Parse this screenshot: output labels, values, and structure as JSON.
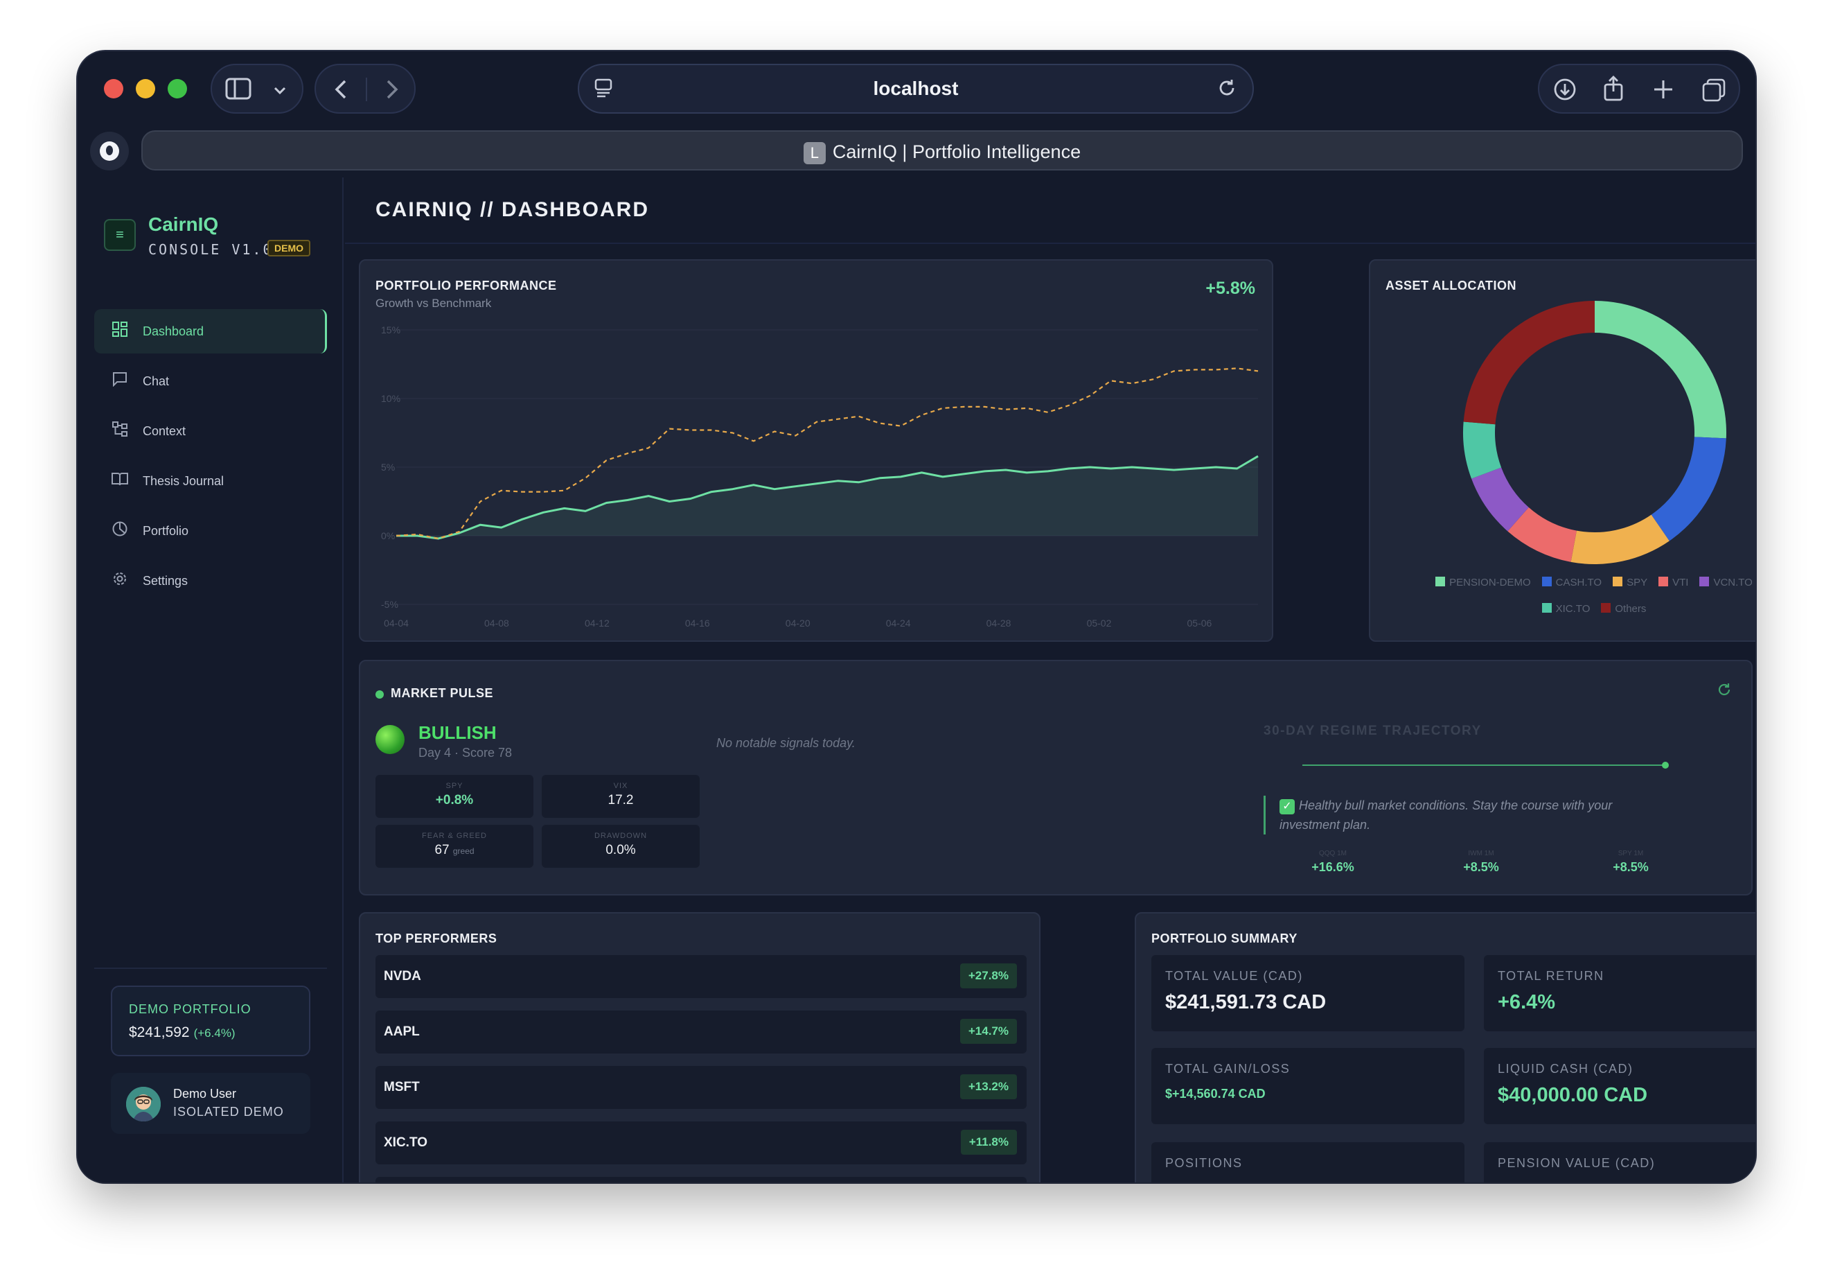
{
  "browser": {
    "url": "localhost",
    "tab_title": "CairnIQ | Portfolio Intelligence",
    "tab_favicon_letter": "L"
  },
  "sidebar": {
    "brand": "CairnIQ",
    "console": "CONSOLE V1.0",
    "demo_badge": "DEMO",
    "items": [
      {
        "label": "Dashboard",
        "icon": "grid-icon",
        "active": true
      },
      {
        "label": "Chat",
        "icon": "chat-icon"
      },
      {
        "label": "Context",
        "icon": "network-icon"
      },
      {
        "label": "Thesis Journal",
        "icon": "book-icon"
      },
      {
        "label": "Portfolio",
        "icon": "pie-icon"
      },
      {
        "label": "Settings",
        "icon": "gear-icon"
      }
    ],
    "demo_portfolio": {
      "label": "DEMO PORTFOLIO",
      "value": "$241,592",
      "pct": "(+6.4%)"
    },
    "user": {
      "name": "Demo User",
      "role": "ISOLATED DEMO"
    }
  },
  "page": {
    "title": "CAIRNIQ // DASHBOARD"
  },
  "performance": {
    "title": "PORTFOLIO PERFORMANCE",
    "subtitle": "Growth vs Benchmark",
    "pct": "+5.8%"
  },
  "chart_data": [
    {
      "type": "line",
      "title": "PORTFOLIO PERFORMANCE",
      "subtitle": "Growth vs Benchmark",
      "ylim": [
        -5,
        15
      ],
      "y_ticks": [
        "15%",
        "10%",
        "5%",
        "0%",
        "-5%"
      ],
      "x_ticks": [
        "04-04",
        "04-08",
        "04-12",
        "04-16",
        "04-20",
        "04-24",
        "04-28",
        "05-02",
        "05-06"
      ],
      "grid": true,
      "series": [
        {
          "color": "#6ee0a4",
          "style": "solid-area",
          "values": [
            0,
            0,
            -0.2,
            0.2,
            0.8,
            0.6,
            1.2,
            1.7,
            2.0,
            1.8,
            2.4,
            2.6,
            2.9,
            2.5,
            2.7,
            3.2,
            3.4,
            3.7,
            3.4,
            3.6,
            3.8,
            4.0,
            3.9,
            4.2,
            4.3,
            4.6,
            4.3,
            4.5,
            4.7,
            4.8,
            4.6,
            4.7,
            4.9,
            5.0,
            4.9,
            5.0,
            4.9,
            4.8,
            4.9,
            5.0,
            4.9,
            5.8
          ]
        },
        {
          "color": "#e8a94a",
          "style": "dashed",
          "values": [
            0,
            0.1,
            -0.2,
            0.3,
            2.5,
            3.3,
            3.2,
            3.2,
            3.3,
            4.2,
            5.5,
            6.0,
            6.4,
            7.8,
            7.7,
            7.7,
            7.5,
            6.9,
            7.6,
            7.3,
            8.3,
            8.5,
            8.7,
            8.2,
            8.0,
            8.8,
            9.3,
            9.4,
            9.4,
            9.2,
            9.3,
            9.0,
            9.5,
            10.2,
            11.3,
            11.1,
            11.4,
            12.0,
            12.1,
            12.1,
            12.2,
            12.0
          ]
        }
      ]
    },
    {
      "type": "pie",
      "title": "ASSET ALLOCATION",
      "donut": true,
      "labels": [
        "PENSION-DEMO",
        "CASH.TO",
        "SPY",
        "VTI",
        "VCN.TO",
        "XIC.TO",
        "Others"
      ],
      "values": [
        25.7,
        14.7,
        12.5,
        8.6,
        7.8,
        7.0,
        23.7
      ],
      "colors": [
        "#76dca3",
        "#3264d6",
        "#f0b14f",
        "#ec6b6b",
        "#8d59c6",
        "#4fc7a5",
        "#8a1f1f"
      ],
      "legend": "bottom"
    },
    {
      "type": "line",
      "title": "30-DAY REGIME TRAJECTORY",
      "values": [
        0,
        0,
        0,
        0,
        0,
        0,
        0,
        0,
        0,
        0
      ]
    }
  ],
  "market_pulse": {
    "title": "MARKET PULSE",
    "state": "BULLISH",
    "sub": "Day 4 · Score 78",
    "no_signals": "No notable signals today.",
    "metrics": [
      {
        "label": "SPY",
        "value": "+0.8%"
      },
      {
        "label": "VIX",
        "value": "17.2"
      },
      {
        "label": "FEAR & GREED",
        "value": "67",
        "unit": "greed"
      },
      {
        "label": "DRAWDOWN",
        "value": "0.0%"
      }
    ],
    "regime_title": "30-DAY REGIME TRAJECTORY",
    "note": "Healthy bull market conditions. Stay the course with your investment plan.",
    "indices": [
      {
        "label": "QQQ 1M",
        "value": "+16.6%"
      },
      {
        "label": "IWM 1M",
        "value": "+8.5%"
      },
      {
        "label": "SPY 1M",
        "value": "+8.5%"
      }
    ]
  },
  "top_performers": {
    "title": "TOP PERFORMERS",
    "rows": [
      {
        "ticker": "NVDA",
        "change": "+27.8%"
      },
      {
        "ticker": "AAPL",
        "change": "+14.7%"
      },
      {
        "ticker": "MSFT",
        "change": "+13.2%"
      },
      {
        "ticker": "XIC.TO",
        "change": "+11.8%"
      }
    ]
  },
  "summary": {
    "title": "PORTFOLIO SUMMARY",
    "total_value_label": "TOTAL VALUE (CAD)",
    "total_value": "$241,591.73 CAD",
    "total_return_label": "TOTAL RETURN",
    "total_return": "+6.4%",
    "gain_label": "TOTAL GAIN/LOSS",
    "gain": "$+14,560.74 CAD",
    "cash_label": "LIQUID CASH (CAD)",
    "cash": "$40,000.00 CAD",
    "positions_label": "POSITIONS",
    "pension_label": "PENSION VALUE (CAD)"
  }
}
